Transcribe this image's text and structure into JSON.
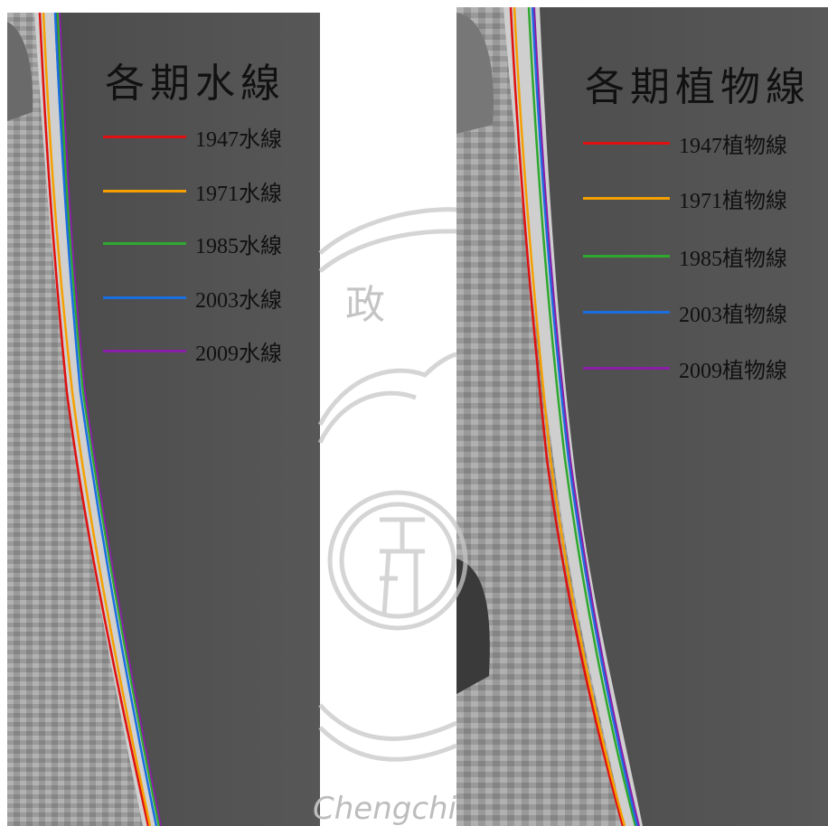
{
  "panels": [
    {
      "title": "各期水線",
      "legend": [
        {
          "label": "1947水線",
          "color": "#e01010"
        },
        {
          "label": "1971水線",
          "color": "#f5a000"
        },
        {
          "label": "1985水線",
          "color": "#2ea82e"
        },
        {
          "label": "2003水線",
          "color": "#1a6fe0"
        },
        {
          "label": "2009水線",
          "color": "#8a1ea8"
        }
      ]
    },
    {
      "title": "各期植物線",
      "legend": [
        {
          "label": "1947植物線",
          "color": "#e01010"
        },
        {
          "label": "1971植物線",
          "color": "#f5a000"
        },
        {
          "label": "1985植物線",
          "color": "#2ea82e"
        },
        {
          "label": "2003植物線",
          "color": "#1a6fe0"
        },
        {
          "label": "2009植物線",
          "color": "#8a1ea8"
        }
      ]
    }
  ],
  "watermark": {
    "seal_char": "政",
    "text": "Chengchi"
  }
}
